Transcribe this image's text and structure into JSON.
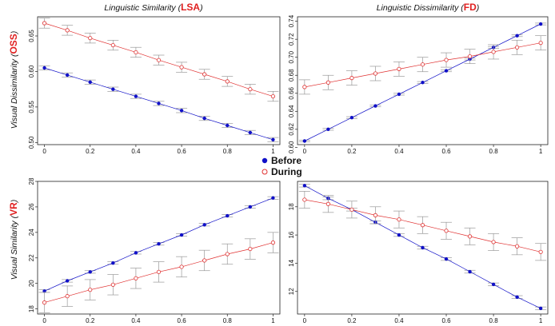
{
  "col_titles": [
    {
      "prefix": "Linguistic Similarity (",
      "highlight": "LSA",
      "suffix": ")"
    },
    {
      "prefix": "Linguistic Dissimilarity (",
      "highlight": "FD",
      "suffix": ")"
    }
  ],
  "row_titles": [
    {
      "prefix": "Visual Dissimilarity (",
      "highlight": "OSS",
      "suffix": ")"
    },
    {
      "prefix": "Visual Similarity (",
      "highlight": "VR",
      "suffix": ")"
    }
  ],
  "legend": [
    {
      "label": "Before",
      "marker": "filled-circle"
    },
    {
      "label": "During",
      "marker": "open-circle"
    }
  ],
  "colors": {
    "before": "#1010c8",
    "during": "#e03030",
    "highlight": "#e02020",
    "error_bar": "#999999"
  },
  "chart_data": [
    {
      "type": "line",
      "panel": "top-left",
      "x": [
        0,
        0.1,
        0.2,
        0.3,
        0.4,
        0.5,
        0.6,
        0.7,
        0.8,
        0.9,
        1.0
      ],
      "xticks": [
        "0",
        "0.2",
        "0.4",
        "0.6",
        "0.8",
        "1"
      ],
      "xlim": [
        -0.03,
        1.03
      ],
      "ylim": [
        0.497,
        0.677
      ],
      "yticks": [
        "0.50",
        "0.55",
        "0.60",
        "0.65"
      ],
      "series": [
        {
          "name": "Before",
          "values": [
            0.605,
            0.595,
            0.585,
            0.575,
            0.565,
            0.555,
            0.545,
            0.534,
            0.524,
            0.514,
            0.504
          ],
          "err": [
            0.003,
            0.003,
            0.003,
            0.003,
            0.003,
            0.003,
            0.003,
            0.003,
            0.003,
            0.003,
            0.003
          ]
        },
        {
          "name": "During",
          "values": [
            0.668,
            0.658,
            0.647,
            0.637,
            0.627,
            0.616,
            0.606,
            0.596,
            0.586,
            0.575,
            0.565
          ],
          "err": [
            0.007,
            0.007,
            0.007,
            0.007,
            0.007,
            0.007,
            0.007,
            0.007,
            0.007,
            0.007,
            0.007
          ]
        }
      ]
    },
    {
      "type": "line",
      "panel": "top-right",
      "x": [
        0,
        0.1,
        0.2,
        0.3,
        0.4,
        0.5,
        0.6,
        0.7,
        0.8,
        0.9,
        1.0
      ],
      "xticks": [
        "0",
        "0.2",
        "0.4",
        "0.6",
        "0.8",
        "1"
      ],
      "xlim": [
        -0.03,
        1.03
      ],
      "ylim": [
        0.603,
        0.745
      ],
      "yticks": [
        "0.60",
        "0.62",
        "0.64",
        "0.66",
        "0.68",
        "0.70",
        "0.72",
        "0.74"
      ],
      "series": [
        {
          "name": "Before",
          "values": [
            0.607,
            0.62,
            0.633,
            0.646,
            0.659,
            0.672,
            0.685,
            0.698,
            0.711,
            0.724,
            0.737
          ],
          "err": [
            0.001,
            0.001,
            0.001,
            0.001,
            0.001,
            0.001,
            0.001,
            0.001,
            0.001,
            0.001,
            0.001
          ]
        },
        {
          "name": "During",
          "values": [
            0.667,
            0.672,
            0.677,
            0.682,
            0.687,
            0.692,
            0.697,
            0.701,
            0.706,
            0.711,
            0.716
          ],
          "err": [
            0.008,
            0.008,
            0.008,
            0.008,
            0.008,
            0.008,
            0.008,
            0.008,
            0.008,
            0.008,
            0.008
          ]
        }
      ]
    },
    {
      "type": "line",
      "panel": "bottom-left",
      "x": [
        0,
        0.1,
        0.2,
        0.3,
        0.4,
        0.5,
        0.6,
        0.7,
        0.8,
        0.9,
        1.0
      ],
      "xticks": [
        "0",
        "0.2",
        "0.4",
        "0.6",
        "0.8",
        "1"
      ],
      "xlim": [
        -0.03,
        1.03
      ],
      "ylim": [
        17.6,
        28.0
      ],
      "yticks": [
        "18",
        "20",
        "22",
        "24",
        "26",
        "28"
      ],
      "series": [
        {
          "name": "Before",
          "values": [
            19.4,
            20.2,
            20.9,
            21.6,
            22.4,
            23.1,
            23.8,
            24.6,
            25.3,
            26.0,
            26.7
          ],
          "err": [
            0.1,
            0.1,
            0.1,
            0.1,
            0.1,
            0.1,
            0.1,
            0.1,
            0.1,
            0.1,
            0.1
          ]
        },
        {
          "name": "During",
          "values": [
            18.5,
            19.0,
            19.5,
            19.9,
            20.4,
            20.9,
            21.3,
            21.8,
            22.3,
            22.7,
            23.2
          ],
          "err": [
            0.8,
            0.8,
            0.8,
            0.8,
            0.8,
            0.8,
            0.8,
            0.8,
            0.8,
            0.8,
            0.8
          ]
        }
      ]
    },
    {
      "type": "line",
      "panel": "bottom-right",
      "x": [
        0,
        0.1,
        0.2,
        0.3,
        0.4,
        0.5,
        0.6,
        0.7,
        0.8,
        0.9,
        1.0
      ],
      "xticks": [
        "0",
        "0.2",
        "0.4",
        "0.6",
        "0.8",
        "1"
      ],
      "xlim": [
        -0.03,
        1.03
      ],
      "ylim": [
        10.4,
        19.8
      ],
      "yticks": [
        "12",
        "14",
        "16",
        "18"
      ],
      "series": [
        {
          "name": "Before",
          "values": [
            19.5,
            18.6,
            17.8,
            16.9,
            16.0,
            15.1,
            14.3,
            13.4,
            12.5,
            11.6,
            10.8
          ],
          "err": [
            0.1,
            0.1,
            0.1,
            0.1,
            0.1,
            0.1,
            0.1,
            0.1,
            0.1,
            0.1,
            0.1
          ]
        },
        {
          "name": "During",
          "values": [
            18.5,
            18.2,
            17.8,
            17.4,
            17.1,
            16.7,
            16.3,
            15.9,
            15.5,
            15.2,
            14.8
          ],
          "err": [
            0.6,
            0.6,
            0.6,
            0.6,
            0.6,
            0.6,
            0.6,
            0.6,
            0.6,
            0.6,
            0.6
          ]
        }
      ]
    }
  ]
}
